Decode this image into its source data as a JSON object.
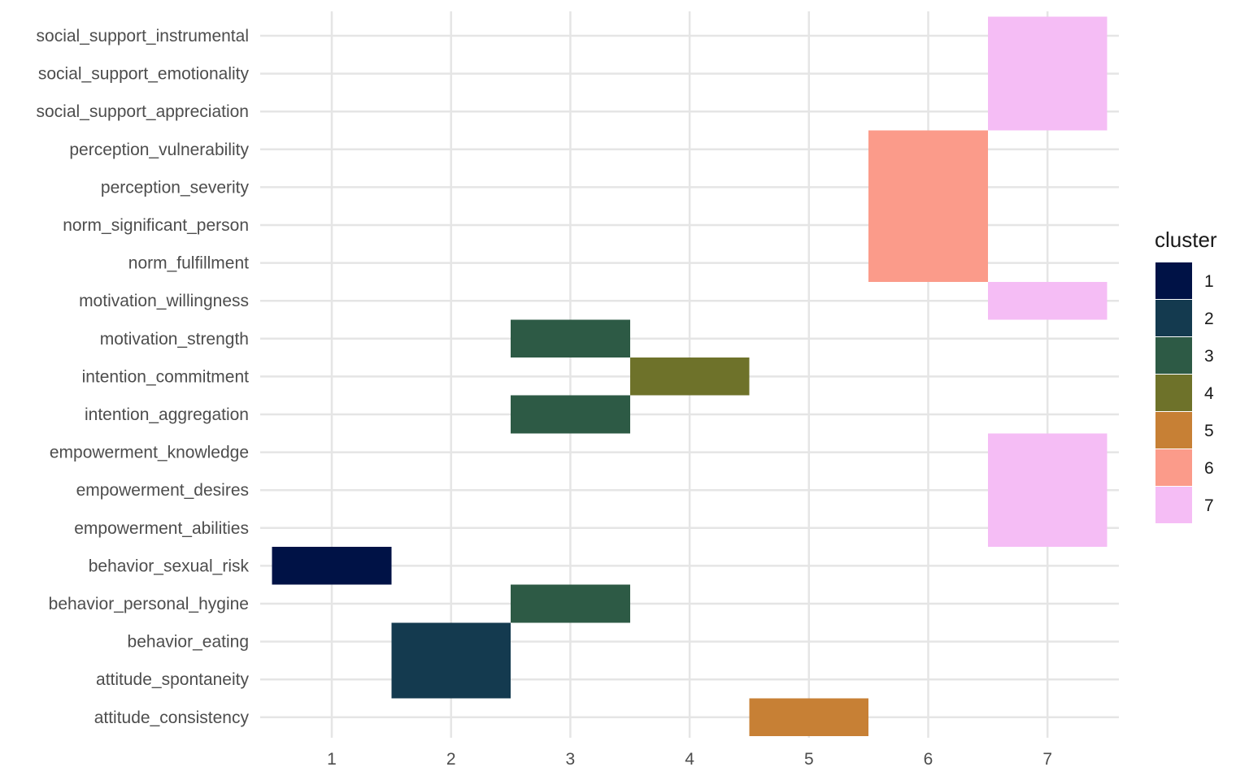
{
  "chart_data": {
    "type": "heatmap",
    "title": "",
    "xlabel": "",
    "ylabel": "",
    "x_ticks": [
      "1",
      "2",
      "3",
      "4",
      "5",
      "6",
      "7"
    ],
    "xlim": [
      0.4,
      7.6
    ],
    "grid": true,
    "legend": {
      "title": "cluster",
      "position": "right",
      "entries": [
        {
          "label": "1",
          "color": "#001246"
        },
        {
          "label": "2",
          "color": "#143a4f"
        },
        {
          "label": "3",
          "color": "#2d5a45"
        },
        {
          "label": "4",
          "color": "#6e722a"
        },
        {
          "label": "5",
          "color": "#c78035"
        },
        {
          "label": "6",
          "color": "#fb9b8a"
        },
        {
          "label": "7",
          "color": "#f5bdf5"
        }
      ]
    },
    "categories": [
      "attitude_consistency",
      "attitude_spontaneity",
      "behavior_eating",
      "behavior_personal_hygine",
      "behavior_sexual_risk",
      "empowerment_abilities",
      "empowerment_desires",
      "empowerment_knowledge",
      "intention_aggregation",
      "intention_commitment",
      "motivation_strength",
      "motivation_willingness",
      "norm_fulfillment",
      "norm_significant_person",
      "perception_severity",
      "perception_vulnerability",
      "social_support_appreciation",
      "social_support_emotionality",
      "social_support_instrumental"
    ],
    "cells": [
      {
        "y": "attitude_consistency",
        "x": 5,
        "cluster": "5"
      },
      {
        "y": "attitude_spontaneity",
        "x": 2,
        "cluster": "2"
      },
      {
        "y": "behavior_eating",
        "x": 2,
        "cluster": "2"
      },
      {
        "y": "behavior_personal_hygine",
        "x": 3,
        "cluster": "3"
      },
      {
        "y": "behavior_sexual_risk",
        "x": 1,
        "cluster": "1"
      },
      {
        "y": "empowerment_abilities",
        "x": 7,
        "cluster": "7"
      },
      {
        "y": "empowerment_desires",
        "x": 7,
        "cluster": "7"
      },
      {
        "y": "empowerment_knowledge",
        "x": 7,
        "cluster": "7"
      },
      {
        "y": "intention_aggregation",
        "x": 3,
        "cluster": "3"
      },
      {
        "y": "intention_commitment",
        "x": 4,
        "cluster": "4"
      },
      {
        "y": "motivation_strength",
        "x": 3,
        "cluster": "3"
      },
      {
        "y": "motivation_willingness",
        "x": 7,
        "cluster": "7"
      },
      {
        "y": "norm_fulfillment",
        "x": 6,
        "cluster": "6"
      },
      {
        "y": "norm_significant_person",
        "x": 6,
        "cluster": "6"
      },
      {
        "y": "perception_severity",
        "x": 6,
        "cluster": "6"
      },
      {
        "y": "perception_vulnerability",
        "x": 6,
        "cluster": "6"
      },
      {
        "y": "social_support_appreciation",
        "x": 7,
        "cluster": "7"
      },
      {
        "y": "social_support_emotionality",
        "x": 7,
        "cluster": "7"
      },
      {
        "y": "social_support_instrumental",
        "x": 7,
        "cluster": "7"
      }
    ]
  }
}
